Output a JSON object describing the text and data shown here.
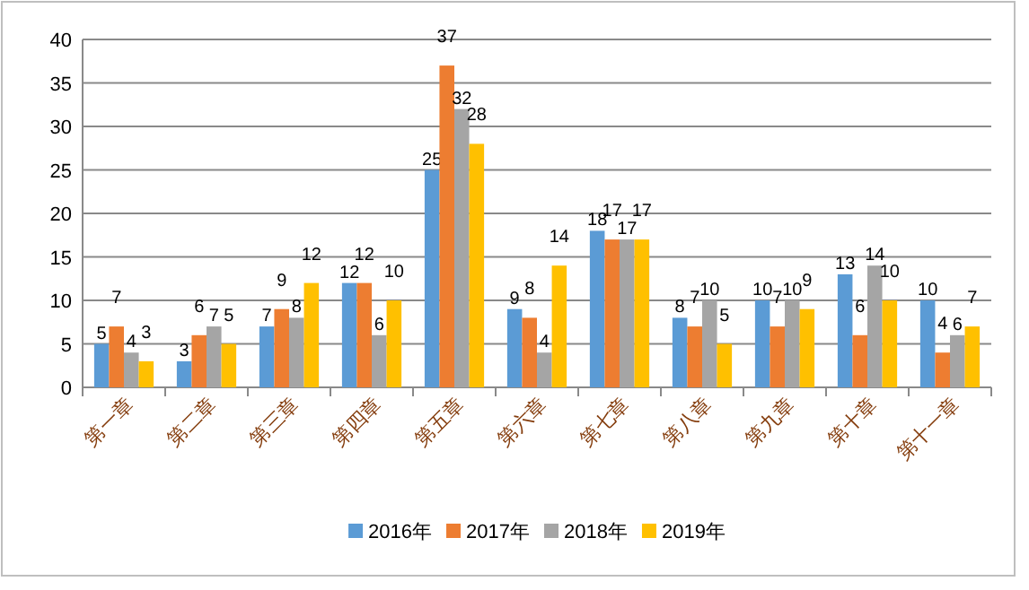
{
  "chart_data": {
    "type": "bar",
    "categories": [
      "第一章",
      "第二章",
      "第三章",
      "第四章",
      "第五章",
      "第六章",
      "第七章",
      "第八章",
      "第九章",
      "第十章",
      "第十一章"
    ],
    "series": [
      {
        "name": "2016年",
        "color": "#5b9bd5",
        "values": [
          5,
          3,
          7,
          12,
          25,
          9,
          18,
          8,
          10,
          13,
          10
        ]
      },
      {
        "name": "2017年",
        "color": "#ed7d31",
        "values": [
          7,
          6,
          9,
          12,
          37,
          8,
          17,
          7,
          7,
          6,
          4
        ]
      },
      {
        "name": "2018年",
        "color": "#a5a5a5",
        "values": [
          4,
          7,
          8,
          6,
          32,
          4,
          17,
          10,
          10,
          14,
          6
        ]
      },
      {
        "name": "2019年",
        "color": "#ffc000",
        "values": [
          3,
          5,
          12,
          10,
          28,
          14,
          17,
          5,
          9,
          10,
          7
        ]
      }
    ],
    "ylim": [
      0,
      40
    ],
    "yticks": [
      0,
      5,
      10,
      15,
      20,
      25,
      30,
      35,
      40
    ],
    "grid": "y",
    "legend": "bottom",
    "data_labels": true
  }
}
